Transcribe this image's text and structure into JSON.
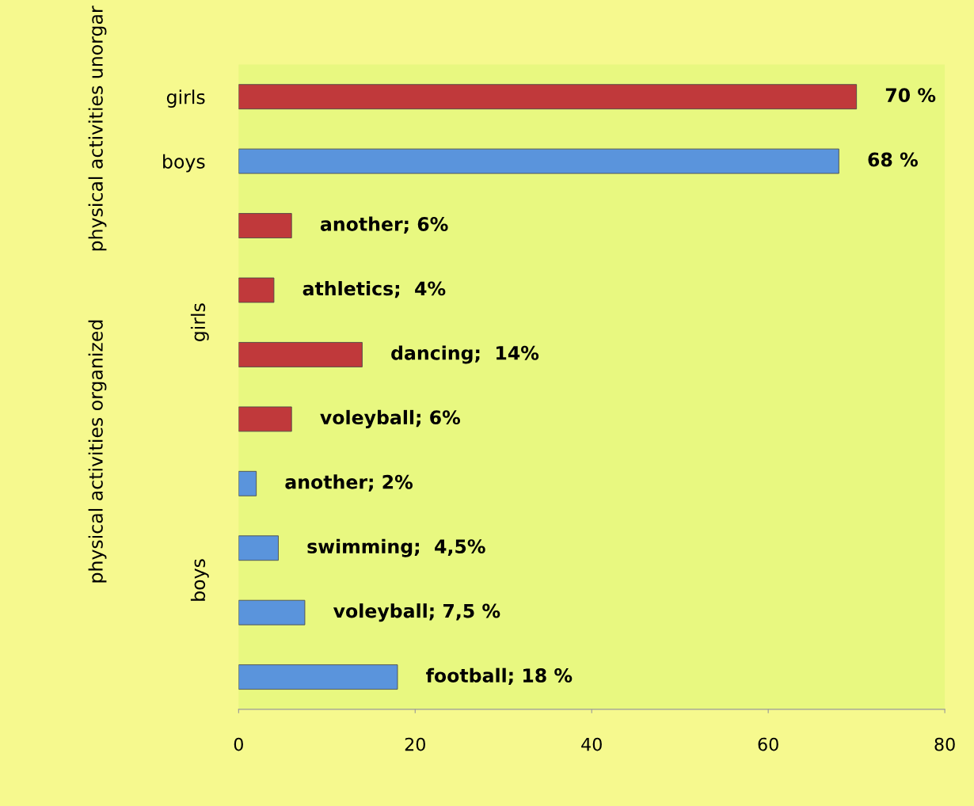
{
  "chart_data": {
    "type": "bar",
    "orientation": "horizontal",
    "categories": [
      "girls",
      "boys",
      null,
      null,
      null,
      null,
      null,
      null,
      null,
      null
    ],
    "values": [
      70,
      68,
      6,
      4,
      14,
      6,
      2,
      4.5,
      7.5,
      18
    ],
    "colors": [
      "#c0393b",
      "#5a94dc",
      "#c0393b",
      "#c0393b",
      "#c0393b",
      "#c0393b",
      "#5a94dc",
      "#5a94dc",
      "#5a94dc",
      "#5a94dc"
    ],
    "value_labels": [
      "70 %",
      "68 %",
      "another; 6%",
      "athletics;  4%",
      "dancing;  14%",
      "voleyball; 6%",
      "another; 2%",
      "swimming;  4,5%",
      "voleyball; 7,5 %",
      "football; 18 %"
    ],
    "annotations": [
      "physical activities unorgar",
      "physical activities organized",
      "girls",
      "boys"
    ],
    "xlim": [
      0,
      80
    ],
    "xticks": [
      0,
      20,
      40,
      60,
      80
    ],
    "tick_labels": "xy",
    "grid": false,
    "legend": false
  }
}
